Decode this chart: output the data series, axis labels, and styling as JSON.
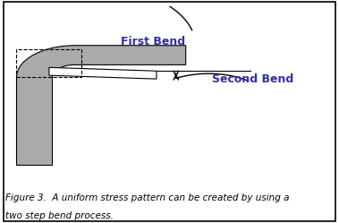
{
  "caption_line1": "Figure 3.  A uniform stress pattern can be created by using a",
  "caption_line2": "two step bend process.",
  "first_bend_label": "First Bend",
  "second_bend_label": "Second Bend",
  "label_color": "#3030a0",
  "background_color": "#ffffff",
  "gray_fill": "#aaaaaa",
  "gray_fill_light": "#cccccc",
  "caption_fontsize": 7.5,
  "label_fontsize": 9
}
